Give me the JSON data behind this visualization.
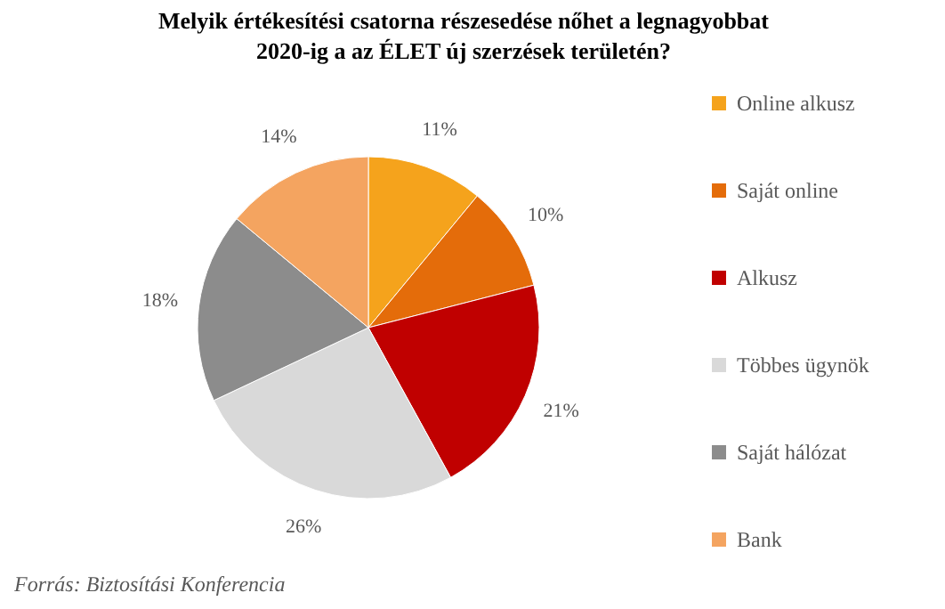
{
  "chart_data": {
    "type": "pie",
    "title": "Melyik értékesítési  csatorna részesedése nőhet a legnagyobbat 2020-ig a az ÉLET új szerzések területén?",
    "categories": [
      "Online alkusz",
      "Saját online",
      "Alkusz",
      "Többes ügynök",
      "Saját hálózat",
      "Bank"
    ],
    "values": [
      11,
      10,
      21,
      26,
      18,
      14
    ],
    "value_labels": [
      "11%",
      "10%",
      "21%",
      "26%",
      "18%",
      "14%"
    ],
    "colors": [
      "#f5a31c",
      "#e46c0a",
      "#c00000",
      "#d9d9d9",
      "#8c8c8c",
      "#f4a460"
    ],
    "legend": "right",
    "annotations": [
      "Forrás: Biztosítási Konferencia"
    ]
  }
}
